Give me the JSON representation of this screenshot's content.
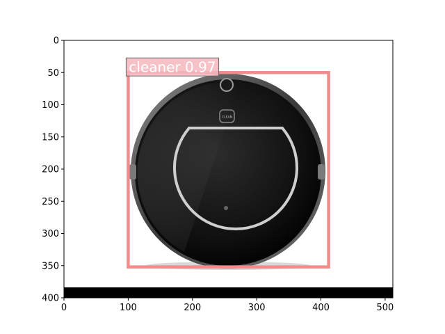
{
  "figure": {
    "x_ticks": [
      "0",
      "100",
      "200",
      "300",
      "400",
      "500"
    ],
    "y_ticks": [
      "0",
      "50",
      "100",
      "150",
      "200",
      "250",
      "300",
      "350",
      "400"
    ]
  },
  "detection": {
    "label": "cleaner 0.97",
    "class": "cleaner",
    "score": 0.97,
    "box": {
      "x_min": 100,
      "y_min": 50,
      "x_max": 412,
      "y_max": 352
    },
    "box_color": "#f08c8c",
    "label_bg": "#f4b6bd"
  },
  "image": {
    "subject": "robot-vacuum",
    "badge_text": "CLEAN",
    "bottom_bar_color": "#000000"
  }
}
